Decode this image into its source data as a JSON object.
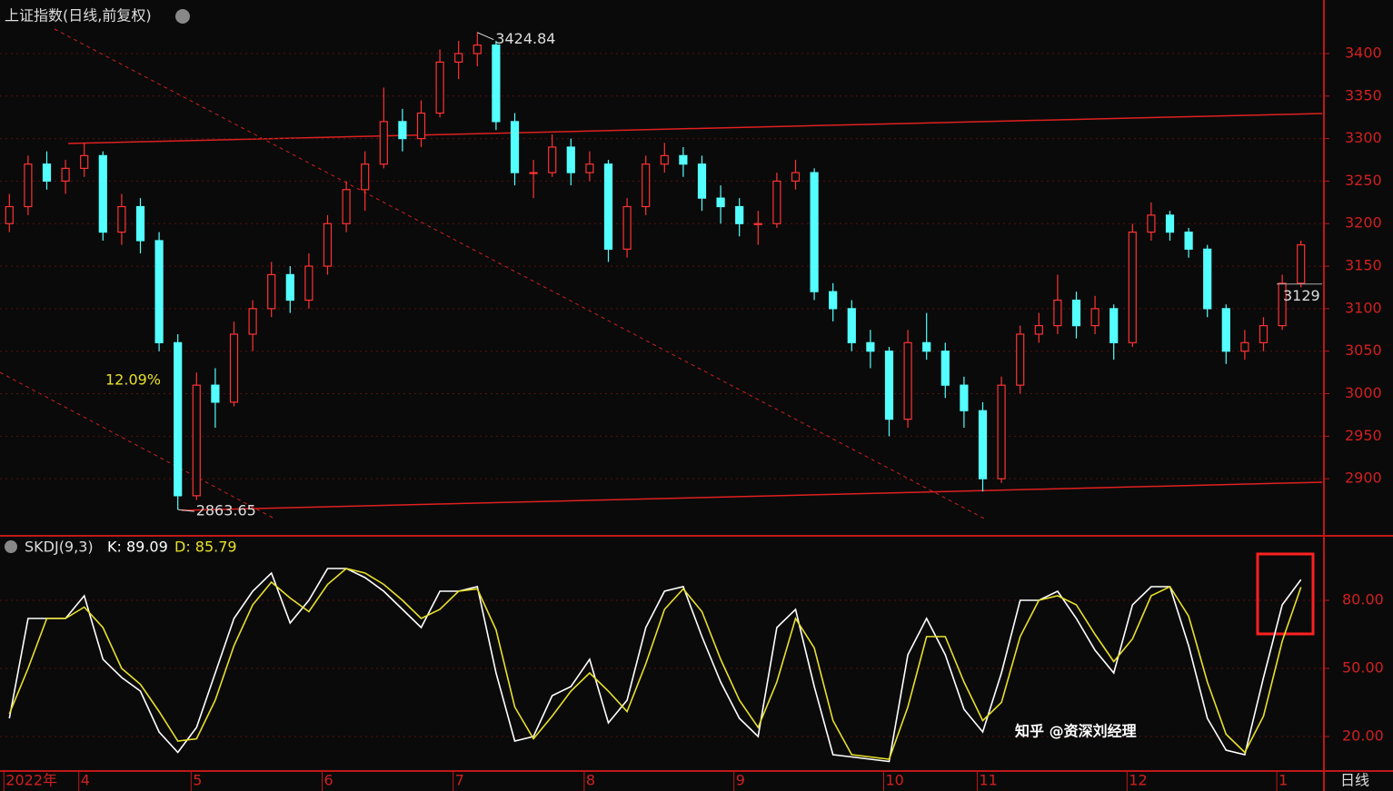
{
  "chart_data": [
    {
      "type": "candlestick",
      "title": "上证指数(日线,前复权)",
      "up_color": "#ff3232",
      "down_color": "#54ffff",
      "categories": [
        "2022年",
        null,
        null,
        null,
        "4",
        null,
        null,
        null,
        null,
        null,
        "5",
        null,
        null,
        null,
        null,
        null,
        null,
        "6",
        null,
        null,
        null,
        null,
        null,
        null,
        "7",
        null,
        null,
        null,
        null,
        null,
        null,
        "8",
        null,
        null,
        null,
        null,
        null,
        null,
        null,
        "9",
        null,
        null,
        null,
        null,
        null,
        null,
        null,
        "10",
        null,
        null,
        null,
        null,
        "11",
        null,
        null,
        null,
        null,
        null,
        null,
        null,
        "12",
        null,
        null,
        null,
        null,
        null,
        null,
        null,
        "1",
        null
      ],
      "candles": [
        [
          3200,
          3235,
          3190,
          3220
        ],
        [
          3220,
          3280,
          3210,
          3270
        ],
        [
          3270,
          3285,
          3240,
          3250
        ],
        [
          3250,
          3275,
          3235,
          3265
        ],
        [
          3265,
          3295,
          3255,
          3280
        ],
        [
          3280,
          3285,
          3180,
          3190
        ],
        [
          3190,
          3235,
          3175,
          3220
        ],
        [
          3220,
          3230,
          3165,
          3180
        ],
        [
          3180,
          3190,
          3050,
          3060
        ],
        [
          3060,
          3070,
          2863.65,
          2880
        ],
        [
          2880,
          3025,
          2875,
          3010
        ],
        [
          3010,
          3030,
          2960,
          2990
        ],
        [
          2990,
          3085,
          2985,
          3070
        ],
        [
          3070,
          3110,
          3050,
          3100
        ],
        [
          3100,
          3155,
          3090,
          3140
        ],
        [
          3140,
          3150,
          3095,
          3110
        ],
        [
          3110,
          3165,
          3100,
          3150
        ],
        [
          3150,
          3210,
          3140,
          3200
        ],
        [
          3200,
          3250,
          3190,
          3240
        ],
        [
          3240,
          3285,
          3215,
          3270
        ],
        [
          3270,
          3360,
          3265,
          3320
        ],
        [
          3320,
          3335,
          3285,
          3300
        ],
        [
          3300,
          3345,
          3290,
          3330
        ],
        [
          3330,
          3405,
          3325,
          3390
        ],
        [
          3390,
          3415,
          3370,
          3400
        ],
        [
          3400,
          3424.84,
          3385,
          3410
        ],
        [
          3410,
          3415,
          3310,
          3320
        ],
        [
          3320,
          3330,
          3245,
          3260
        ],
        [
          3260,
          3275,
          3230,
          3260
        ],
        [
          3260,
          3305,
          3255,
          3290
        ],
        [
          3290,
          3300,
          3245,
          3260
        ],
        [
          3260,
          3285,
          3250,
          3270
        ],
        [
          3270,
          3275,
          3155,
          3170
        ],
        [
          3170,
          3230,
          3160,
          3220
        ],
        [
          3220,
          3280,
          3210,
          3270
        ],
        [
          3270,
          3295,
          3260,
          3280
        ],
        [
          3280,
          3290,
          3255,
          3270
        ],
        [
          3270,
          3280,
          3215,
          3230
        ],
        [
          3230,
          3245,
          3200,
          3220
        ],
        [
          3220,
          3230,
          3185,
          3200
        ],
        [
          3200,
          3215,
          3175,
          3200
        ],
        [
          3200,
          3260,
          3195,
          3250
        ],
        [
          3250,
          3275,
          3240,
          3260
        ],
        [
          3260,
          3265,
          3110,
          3120
        ],
        [
          3120,
          3130,
          3085,
          3100
        ],
        [
          3100,
          3110,
          3050,
          3060
        ],
        [
          3060,
          3075,
          3030,
          3050
        ],
        [
          3050,
          3055,
          2950,
          2970
        ],
        [
          2970,
          3075,
          2960,
          3060
        ],
        [
          3060,
          3095,
          3040,
          3050
        ],
        [
          3050,
          3060,
          2995,
          3010
        ],
        [
          3010,
          3020,
          2960,
          2980
        ],
        [
          2980,
          2990,
          2885,
          2900
        ],
        [
          2900,
          3020,
          2895,
          3010
        ],
        [
          3010,
          3080,
          3000,
          3070
        ],
        [
          3070,
          3095,
          3060,
          3080
        ],
        [
          3080,
          3140,
          3070,
          3110
        ],
        [
          3110,
          3120,
          3065,
          3080
        ],
        [
          3080,
          3115,
          3070,
          3100
        ],
        [
          3100,
          3105,
          3040,
          3060
        ],
        [
          3060,
          3200,
          3055,
          3190
        ],
        [
          3190,
          3225,
          3180,
          3210
        ],
        [
          3210,
          3215,
          3180,
          3190
        ],
        [
          3190,
          3195,
          3160,
          3170
        ],
        [
          3170,
          3175,
          3090,
          3100
        ],
        [
          3100,
          3105,
          3035,
          3050
        ],
        [
          3050,
          3075,
          3040,
          3060
        ],
        [
          3060,
          3090,
          3050,
          3080
        ],
        [
          3080,
          3140,
          3075,
          3130
        ],
        [
          3130,
          3180,
          3125,
          3175
        ]
      ],
      "ylim": [
        2835,
        3463
      ],
      "yticks": [
        2900,
        2950,
        3000,
        3050,
        3100,
        3150,
        3200,
        3250,
        3300,
        3350,
        3400
      ],
      "grid": true,
      "last_price": 3129,
      "annotations": [
        "12.09%"
      ],
      "period_label": "日线"
    },
    {
      "type": "line",
      "title": "SKDJ(9,3)",
      "series": [
        {
          "name": "K: 89.09",
          "color": "#ffffff",
          "values": [
            28,
            72,
            72,
            72,
            82,
            54,
            46,
            40,
            22,
            13,
            24,
            48,
            72,
            84,
            92,
            70,
            80,
            94,
            94,
            90,
            84,
            76,
            68,
            84,
            84,
            86,
            48,
            18,
            20,
            38,
            42,
            54,
            26,
            36,
            68,
            84,
            86,
            64,
            44,
            28,
            20,
            68,
            76,
            42,
            12,
            11,
            10,
            9,
            56,
            72,
            56,
            32,
            22,
            48,
            80,
            80,
            84,
            72,
            58,
            48,
            78,
            86,
            86,
            60,
            28,
            14,
            12,
            46,
            78,
            89.09
          ]
        },
        {
          "name": "D: 85.79",
          "color": "#e8e02a",
          "values": [
            30,
            50,
            72,
            72,
            77,
            68,
            50,
            43,
            31,
            18,
            19,
            36,
            60,
            78,
            88,
            81,
            75,
            87,
            94,
            92,
            87,
            80,
            72,
            76,
            84,
            85,
            67,
            33,
            19,
            29,
            40,
            48,
            40,
            31,
            52,
            76,
            85,
            75,
            54,
            36,
            24,
            44,
            72,
            59,
            27,
            12,
            11,
            10,
            33,
            64,
            64,
            44,
            27,
            35,
            64,
            80,
            82,
            78,
            65,
            53,
            63,
            82,
            86,
            73,
            44,
            21,
            13,
            29,
            62,
            85.79
          ]
        }
      ],
      "ylim": [
        5.2,
        107.6
      ],
      "yticks": [
        {
          "value": 20,
          "label": "20.00"
        },
        {
          "value": 50,
          "label": "50.00"
        },
        {
          "value": 80,
          "label": "80.00"
        }
      ],
      "grid": true,
      "watermark": "知乎 @资深刘经理"
    }
  ]
}
